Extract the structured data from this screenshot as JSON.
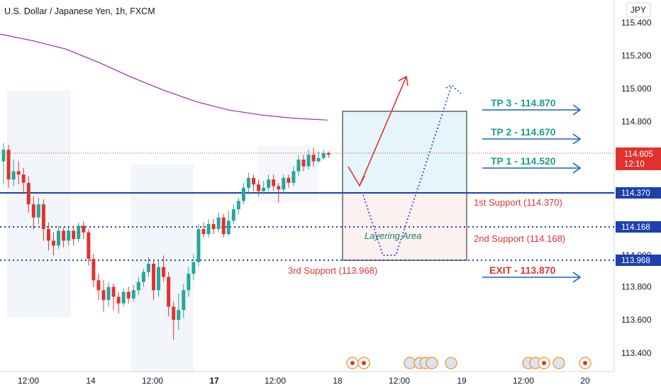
{
  "header": {
    "symbol_title": "U.S. Dollar / Japanese Yen, 1h, FXCM",
    "currency_badge": "JPY"
  },
  "colors": {
    "bull": "#26a69a",
    "bear": "#e0332f",
    "ma": "#9c27b0",
    "support_line": "#1e40af",
    "price_label": "#e0332f",
    "tp_text": "#1a9e8b",
    "arrow_blue": "#1565c0"
  },
  "chart_data": {
    "type": "candlestick",
    "ylim": [
      113.25,
      115.5
    ],
    "y_ticks": [
      "115.400",
      "115.200",
      "115.000",
      "114.800",
      "113.800",
      "113.600",
      "113.400"
    ],
    "x_ticks": [
      "12:00",
      "14",
      "12:00",
      "17",
      "12:00",
      "18",
      "12:00",
      "19",
      "12:00",
      "20"
    ],
    "current_price": {
      "value": "114.605",
      "countdown": "12:10"
    },
    "price_labels": [
      {
        "value": "114.370"
      },
      {
        "value": "114.168"
      },
      {
        "value": "113.968"
      }
    ],
    "moving_average": [
      115.33,
      115.29,
      115.24,
      115.16,
      115.07,
      114.99,
      114.92,
      114.87,
      114.84,
      114.82,
      114.81
    ],
    "annotations": {
      "tp3": "TP 3 - 114.870",
      "tp2": "TP 2 - 114.670",
      "tp1": "TP 1 - 114.520",
      "support1": "1st Support (114.370)",
      "support2": "2nd Support (114.168)",
      "support3": "3rd Support (113.968)",
      "exit": "EXIT - 113.870",
      "layering": "Layering Area",
      "partial_tick": "114.000"
    },
    "candles": [
      {
        "o": 114.56,
        "c": 114.63,
        "h": 114.67,
        "l": 114.42
      },
      {
        "o": 114.63,
        "c": 114.45,
        "h": 114.66,
        "l": 114.4
      },
      {
        "o": 114.45,
        "c": 114.5,
        "h": 114.57,
        "l": 114.41
      },
      {
        "o": 114.5,
        "c": 114.48,
        "h": 114.56,
        "l": 114.42
      },
      {
        "o": 114.48,
        "c": 114.43,
        "h": 114.52,
        "l": 114.36
      },
      {
        "o": 114.43,
        "c": 114.3,
        "h": 114.47,
        "l": 114.25
      },
      {
        "o": 114.3,
        "c": 114.22,
        "h": 114.35,
        "l": 114.15
      },
      {
        "o": 114.22,
        "c": 114.3,
        "h": 114.34,
        "l": 114.18
      },
      {
        "o": 114.3,
        "c": 114.15,
        "h": 114.33,
        "l": 114.08
      },
      {
        "o": 114.15,
        "c": 114.08,
        "h": 114.19,
        "l": 114.02
      },
      {
        "o": 114.08,
        "c": 114.05,
        "h": 114.13,
        "l": 113.99
      },
      {
        "o": 114.05,
        "c": 114.14,
        "h": 114.17,
        "l": 114.03
      },
      {
        "o": 114.14,
        "c": 114.08,
        "h": 114.16,
        "l": 114.04
      },
      {
        "o": 114.08,
        "c": 114.14,
        "h": 114.16,
        "l": 114.05
      },
      {
        "o": 114.14,
        "c": 114.09,
        "h": 114.17,
        "l": 114.05
      },
      {
        "o": 114.09,
        "c": 114.17,
        "h": 114.19,
        "l": 114.07
      },
      {
        "o": 114.17,
        "c": 114.13,
        "h": 114.2,
        "l": 114.09
      },
      {
        "o": 114.13,
        "c": 113.97,
        "h": 114.15,
        "l": 113.93
      },
      {
        "o": 113.97,
        "c": 113.84,
        "h": 114.0,
        "l": 113.8
      },
      {
        "o": 113.84,
        "c": 113.78,
        "h": 113.88,
        "l": 113.72
      },
      {
        "o": 113.78,
        "c": 113.72,
        "h": 113.84,
        "l": 113.65
      },
      {
        "o": 113.72,
        "c": 113.8,
        "h": 113.83,
        "l": 113.68
      },
      {
        "o": 113.8,
        "c": 113.74,
        "h": 113.82,
        "l": 113.66
      },
      {
        "o": 113.74,
        "c": 113.7,
        "h": 113.77,
        "l": 113.64
      },
      {
        "o": 113.7,
        "c": 113.77,
        "h": 113.79,
        "l": 113.68
      },
      {
        "o": 113.77,
        "c": 113.73,
        "h": 113.8,
        "l": 113.7
      },
      {
        "o": 113.73,
        "c": 113.78,
        "h": 113.81,
        "l": 113.71
      },
      {
        "o": 113.78,
        "c": 113.83,
        "h": 113.86,
        "l": 113.75
      },
      {
        "o": 113.83,
        "c": 113.89,
        "h": 113.91,
        "l": 113.8
      },
      {
        "o": 113.89,
        "c": 113.94,
        "h": 113.98,
        "l": 113.86
      },
      {
        "o": 113.94,
        "c": 113.78,
        "h": 113.96,
        "l": 113.72
      },
      {
        "o": 113.78,
        "c": 113.92,
        "h": 113.96,
        "l": 113.74
      },
      {
        "o": 113.92,
        "c": 113.86,
        "h": 113.99,
        "l": 113.83
      },
      {
        "o": 113.86,
        "c": 113.68,
        "h": 113.89,
        "l": 113.62
      },
      {
        "o": 113.68,
        "c": 113.6,
        "h": 113.71,
        "l": 113.48
      },
      {
        "o": 113.6,
        "c": 113.66,
        "h": 113.76,
        "l": 113.54
      },
      {
        "o": 113.66,
        "c": 113.78,
        "h": 113.82,
        "l": 113.61
      },
      {
        "o": 113.78,
        "c": 113.88,
        "h": 113.92,
        "l": 113.74
      },
      {
        "o": 113.88,
        "c": 113.95,
        "h": 114.0,
        "l": 113.84
      },
      {
        "o": 113.95,
        "c": 114.15,
        "h": 114.18,
        "l": 113.92
      },
      {
        "o": 114.15,
        "c": 114.12,
        "h": 114.19,
        "l": 114.1
      },
      {
        "o": 114.12,
        "c": 114.18,
        "h": 114.21,
        "l": 114.1
      },
      {
        "o": 114.18,
        "c": 114.15,
        "h": 114.21,
        "l": 114.12
      },
      {
        "o": 114.15,
        "c": 114.22,
        "h": 114.25,
        "l": 114.13
      },
      {
        "o": 114.22,
        "c": 114.12,
        "h": 114.24,
        "l": 114.1
      },
      {
        "o": 114.12,
        "c": 114.2,
        "h": 114.26,
        "l": 114.11
      },
      {
        "o": 114.2,
        "c": 114.27,
        "h": 114.3,
        "l": 114.18
      },
      {
        "o": 114.27,
        "c": 114.32,
        "h": 114.34,
        "l": 114.24
      },
      {
        "o": 114.32,
        "c": 114.4,
        "h": 114.43,
        "l": 114.3
      },
      {
        "o": 114.4,
        "c": 114.46,
        "h": 114.49,
        "l": 114.36
      },
      {
        "o": 114.46,
        "c": 114.42,
        "h": 114.48,
        "l": 114.38
      },
      {
        "o": 114.42,
        "c": 114.38,
        "h": 114.45,
        "l": 114.35
      },
      {
        "o": 114.38,
        "c": 114.4,
        "h": 114.44,
        "l": 114.36
      },
      {
        "o": 114.4,
        "c": 114.45,
        "h": 114.48,
        "l": 114.38
      },
      {
        "o": 114.45,
        "c": 114.41,
        "h": 114.48,
        "l": 114.38
      },
      {
        "o": 114.41,
        "c": 114.39,
        "h": 114.43,
        "l": 114.31
      },
      {
        "o": 114.39,
        "c": 114.46,
        "h": 114.48,
        "l": 114.36
      },
      {
        "o": 114.46,
        "c": 114.43,
        "h": 114.48,
        "l": 114.4
      },
      {
        "o": 114.43,
        "c": 114.5,
        "h": 114.53,
        "l": 114.41
      },
      {
        "o": 114.5,
        "c": 114.57,
        "h": 114.6,
        "l": 114.47
      },
      {
        "o": 114.57,
        "c": 114.53,
        "h": 114.6,
        "l": 114.5
      },
      {
        "o": 114.53,
        "c": 114.6,
        "h": 114.63,
        "l": 114.51
      },
      {
        "o": 114.6,
        "c": 114.56,
        "h": 114.64,
        "l": 114.53
      },
      {
        "o": 114.56,
        "c": 114.58,
        "h": 114.62,
        "l": 114.55
      },
      {
        "o": 114.58,
        "c": 114.61,
        "h": 114.63,
        "l": 114.57
      },
      {
        "o": 114.61,
        "c": 114.6,
        "h": 114.62,
        "l": 114.58
      }
    ]
  }
}
